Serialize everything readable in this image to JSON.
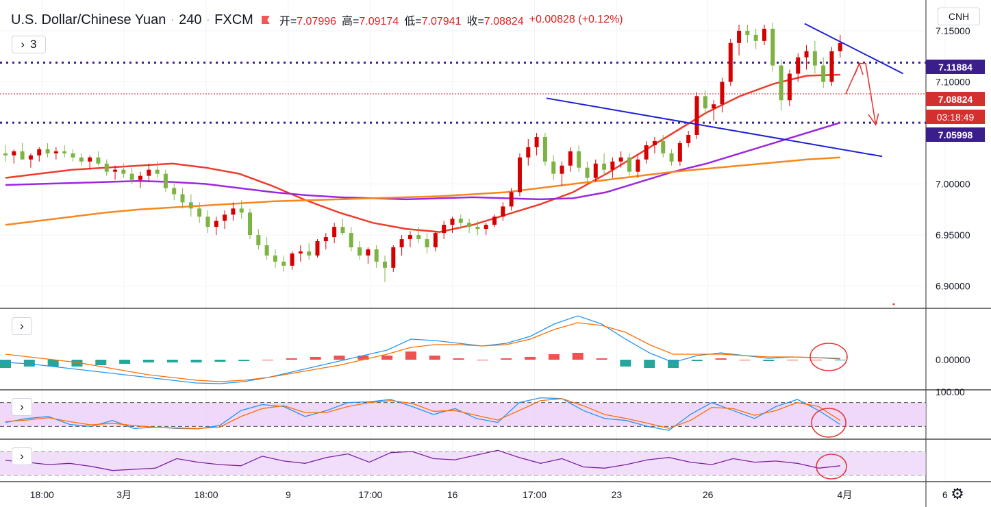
{
  "header": {
    "symbol": "U.S. Dollar/Chinese Yuan",
    "interval": "240",
    "exchange": "FXCM",
    "open_label": "开=",
    "open": "7.07996",
    "high_label": "高=",
    "high": "7.09174",
    "low_label": "低=",
    "low": "7.07941",
    "close_label": "收=",
    "close": "7.08824",
    "change": "+0.00828 (+0.12%)",
    "collapse_count": "3"
  },
  "currency_button": "CNH",
  "price_tags": {
    "resistance": "7.11884",
    "last": "7.08824",
    "countdown": "03:18:49",
    "support": "7.05998"
  },
  "colors": {
    "up": "#d50000",
    "down": "#7cb342",
    "ma_red": "#ef3b2c",
    "ma_purple": "#9c27e0",
    "ma_orange": "#f7861d",
    "trendline": "#1e1ed8",
    "level_line": "#3a1e8c",
    "last_price_line": "#c62828",
    "macd_line": "#2196f3",
    "signal_line": "#ff6d00",
    "hist_pos": "#ef5350",
    "hist_neg": "#26a69a",
    "rsi_band": "#e8c8f8",
    "rsi_line": "#7b1fa2",
    "annotation": "#e53935"
  },
  "chart_data": [
    {
      "type": "candlestick",
      "title": "U.S. Dollar/Chinese Yuan · 240 · FXCM",
      "y_ticks": [
        "7.15000",
        "7.10000",
        "7.00000",
        "6.95000",
        "6.90000"
      ],
      "ylim": [
        6.885,
        7.16
      ],
      "x_ticks": [
        "18:00",
        "3月",
        "18:00",
        "9",
        "17:00",
        "16",
        "17:00",
        "23",
        "26",
        "4月",
        "6"
      ],
      "xlim": [
        0,
        100
      ],
      "x_tick_positions": [
        4,
        13,
        22,
        31,
        40,
        49,
        58,
        67,
        77,
        92,
        103
      ],
      "candles": [
        [
          7.03,
          7.038,
          7.022,
          7.028
        ],
        [
          7.028,
          7.034,
          7.02,
          7.032
        ],
        [
          7.032,
          7.04,
          7.026,
          7.024
        ],
        [
          7.024,
          7.03,
          7.016,
          7.028
        ],
        [
          7.028,
          7.036,
          7.022,
          7.034
        ],
        [
          7.034,
          7.04,
          7.026,
          7.03
        ],
        [
          7.03,
          7.036,
          7.024,
          7.032
        ],
        [
          7.032,
          7.038,
          7.026,
          7.03
        ],
        [
          7.03,
          7.034,
          7.022,
          7.026
        ],
        [
          7.026,
          7.03,
          7.018,
          7.022
        ],
        [
          7.022,
          7.028,
          7.014,
          7.026
        ],
        [
          7.026,
          7.032,
          7.018,
          7.02
        ],
        [
          7.02,
          7.024,
          7.008,
          7.012
        ],
        [
          7.012,
          7.018,
          7.004,
          7.014
        ],
        [
          7.014,
          7.02,
          7.006,
          7.01
        ],
        [
          7.01,
          7.016,
          7.0,
          7.004
        ],
        [
          7.004,
          7.012,
          6.996,
          7.008
        ],
        [
          7.008,
          7.02,
          7.002,
          7.014
        ],
        [
          7.014,
          7.022,
          7.006,
          7.01
        ],
        [
          7.01,
          7.014,
          6.992,
          6.996
        ],
        [
          6.996,
          7.002,
          6.984,
          6.99
        ],
        [
          6.99,
          6.996,
          6.976,
          6.982
        ],
        [
          6.982,
          6.99,
          6.968,
          6.976
        ],
        [
          6.976,
          6.982,
          6.962,
          6.968
        ],
        [
          6.968,
          6.974,
          6.952,
          6.958
        ],
        [
          6.958,
          6.968,
          6.95,
          6.964
        ],
        [
          6.964,
          6.974,
          6.956,
          6.97
        ],
        [
          6.97,
          6.982,
          6.964,
          6.976
        ],
        [
          6.976,
          6.984,
          6.966,
          6.972
        ],
        [
          6.972,
          6.976,
          6.946,
          6.95
        ],
        [
          6.95,
          6.956,
          6.936,
          6.94
        ],
        [
          6.94,
          6.948,
          6.926,
          6.93
        ],
        [
          6.93,
          6.936,
          6.918,
          6.924
        ],
        [
          6.924,
          6.93,
          6.914,
          6.92
        ],
        [
          6.92,
          6.934,
          6.916,
          6.932
        ],
        [
          6.932,
          6.94,
          6.924,
          6.934
        ],
        [
          6.934,
          6.942,
          6.926,
          6.93
        ],
        [
          6.93,
          6.946,
          6.928,
          6.944
        ],
        [
          6.944,
          6.952,
          6.936,
          6.948
        ],
        [
          6.948,
          6.962,
          6.942,
          6.958
        ],
        [
          6.958,
          6.966,
          6.95,
          6.952
        ],
        [
          6.952,
          6.958,
          6.934,
          6.938
        ],
        [
          6.938,
          6.944,
          6.926,
          6.93
        ],
        [
          6.93,
          6.938,
          6.922,
          6.936
        ],
        [
          6.936,
          6.94,
          6.918,
          6.924
        ],
        [
          6.924,
          6.93,
          6.904,
          6.918
        ],
        [
          6.918,
          6.94,
          6.914,
          6.938
        ],
        [
          6.938,
          6.95,
          6.93,
          6.946
        ],
        [
          6.946,
          6.954,
          6.938,
          6.95
        ],
        [
          6.95,
          6.958,
          6.942,
          6.946
        ],
        [
          6.946,
          6.952,
          6.932,
          6.938
        ],
        [
          6.938,
          6.954,
          6.934,
          6.952
        ],
        [
          6.952,
          6.964,
          6.946,
          6.96
        ],
        [
          6.96,
          6.968,
          6.952,
          6.966
        ],
        [
          6.966,
          6.97,
          6.956,
          6.962
        ],
        [
          6.962,
          6.966,
          6.952,
          6.958
        ],
        [
          6.958,
          6.964,
          6.95,
          6.956
        ],
        [
          6.956,
          6.962,
          6.95,
          6.96
        ],
        [
          6.96,
          6.97,
          6.958,
          6.968
        ],
        [
          6.968,
          6.982,
          6.964,
          6.978
        ],
        [
          6.978,
          6.996,
          6.974,
          6.992
        ],
        [
          6.992,
          7.03,
          6.988,
          7.026
        ],
        [
          7.026,
          7.044,
          7.018,
          7.036
        ],
        [
          7.036,
          7.05,
          7.028,
          7.046
        ],
        [
          7.046,
          7.05,
          7.018,
          7.022
        ],
        [
          7.022,
          7.028,
          7.004,
          7.01
        ],
        [
          7.01,
          7.022,
          6.998,
          7.018
        ],
        [
          7.018,
          7.036,
          7.012,
          7.032
        ],
        [
          7.032,
          7.038,
          7.012,
          7.016
        ],
        [
          7.016,
          7.022,
          7.0,
          7.006
        ],
        [
          7.006,
          7.024,
          7.002,
          7.02
        ],
        [
          7.02,
          7.03,
          7.008,
          7.014
        ],
        [
          7.014,
          7.026,
          7.006,
          7.022
        ],
        [
          7.022,
          7.032,
          7.016,
          7.026
        ],
        [
          7.026,
          7.03,
          7.008,
          7.012
        ],
        [
          7.012,
          7.028,
          7.006,
          7.024
        ],
        [
          7.024,
          7.042,
          7.02,
          7.038
        ],
        [
          7.038,
          7.046,
          7.03,
          7.042
        ],
        [
          7.042,
          7.048,
          7.026,
          7.03
        ],
        [
          7.03,
          7.034,
          7.018,
          7.022
        ],
        [
          7.022,
          7.042,
          7.018,
          7.04
        ],
        [
          7.04,
          7.052,
          7.036,
          7.048
        ],
        [
          7.048,
          7.09,
          7.044,
          7.086
        ],
        [
          7.086,
          7.092,
          7.068,
          7.074
        ],
        [
          7.074,
          7.082,
          7.062,
          7.078
        ],
        [
          7.078,
          7.104,
          7.07,
          7.1
        ],
        [
          7.1,
          7.142,
          7.096,
          7.138
        ],
        [
          7.138,
          7.156,
          7.126,
          7.15
        ],
        [
          7.15,
          7.156,
          7.138,
          7.146
        ],
        [
          7.146,
          7.152,
          7.132,
          7.14
        ],
        [
          7.14,
          7.156,
          7.136,
          7.152
        ],
        [
          7.152,
          7.158,
          7.11,
          7.116
        ],
        [
          7.116,
          7.122,
          7.072,
          7.082
        ],
        [
          7.082,
          7.112,
          7.076,
          7.108
        ],
        [
          7.108,
          7.128,
          7.1,
          7.124
        ],
        [
          7.124,
          7.136,
          7.112,
          7.13
        ],
        [
          7.13,
          7.14,
          7.108,
          7.116
        ],
        [
          7.116,
          7.124,
          7.094,
          7.1
        ],
        [
          7.1,
          7.134,
          7.096,
          7.13
        ],
        [
          7.13,
          7.146,
          7.124,
          7.138
        ]
      ],
      "moving_averages": [
        {
          "color": "#ef3b2c",
          "values": [
            7.006,
            7.01,
            7.014,
            7.016,
            7.018,
            7.02,
            7.016,
            7.01,
            6.998,
            6.984,
            6.972,
            6.962,
            6.956,
            6.953,
            6.96,
            6.97,
            6.98,
            6.992,
            7.01,
            7.03,
            7.05,
            7.07,
            7.086,
            7.098,
            7.106,
            7.107
          ]
        },
        {
          "color": "#9c27e0",
          "values": [
            6.999,
            7.0,
            7.001,
            7.002,
            7.003,
            7.002,
            7.0,
            6.996,
            6.992,
            6.989,
            6.987,
            6.986,
            6.985,
            6.986,
            6.987,
            6.986,
            6.985,
            6.986,
            6.992,
            7.002,
            7.012,
            7.02,
            7.03,
            7.04,
            7.05,
            7.06
          ]
        },
        {
          "color": "#f7861d",
          "values": [
            6.96,
            6.964,
            6.968,
            6.972,
            6.975,
            6.977,
            6.979,
            6.981,
            6.983,
            6.984,
            6.985,
            6.986,
            6.987,
            6.988,
            6.99,
            6.992,
            6.996,
            7.0,
            7.004,
            7.008,
            7.012,
            7.015,
            7.018,
            7.021,
            7.024,
            7.026
          ]
        }
      ],
      "horizontal_levels": [
        "7.11884",
        "7.08824",
        "7.05998"
      ]
    },
    {
      "type": "line",
      "indicator": "MACD",
      "y_ticks": [
        "0.00000"
      ],
      "macd": [
        -0.004,
        -0.006,
        -0.01,
        -0.014,
        -0.018,
        -0.022,
        -0.026,
        -0.03,
        -0.034,
        -0.035,
        -0.032,
        -0.026,
        -0.018,
        -0.01,
        -0.002,
        0.006,
        0.014,
        0.03,
        0.028,
        0.024,
        0.02,
        0.024,
        0.034,
        0.052,
        0.064,
        0.052,
        0.03,
        0.01,
        -0.004,
        0.006,
        0.01,
        0.006,
        0.002,
        0.004,
        0.003,
        0.001
      ],
      "signal": [
        0.008,
        0.004,
        0.0,
        -0.004,
        -0.01,
        -0.016,
        -0.022,
        -0.026,
        -0.03,
        -0.032,
        -0.03,
        -0.026,
        -0.02,
        -0.014,
        -0.008,
        0.0,
        0.008,
        0.018,
        0.022,
        0.022,
        0.02,
        0.022,
        0.03,
        0.044,
        0.054,
        0.05,
        0.04,
        0.022,
        0.008,
        0.008,
        0.008,
        0.006,
        0.004,
        0.004,
        0.003,
        0.002
      ],
      "histogram": [
        -0.012,
        -0.01,
        -0.01,
        -0.01,
        -0.008,
        -0.006,
        -0.004,
        -0.004,
        -0.004,
        -0.003,
        -0.002,
        0.0,
        0.002,
        0.004,
        0.006,
        0.006,
        0.006,
        0.012,
        0.006,
        0.002,
        0.0,
        0.002,
        0.004,
        0.008,
        0.01,
        0.002,
        -0.01,
        -0.012,
        -0.012,
        -0.002,
        0.002,
        0.0,
        -0.002,
        0.0,
        0.0,
        -0.001
      ]
    },
    {
      "type": "line",
      "indicator": "Stochastic",
      "y_ticks": [
        "100.00"
      ],
      "k": [
        30,
        40,
        45,
        25,
        20,
        35,
        15,
        18,
        15,
        14,
        22,
        60,
        75,
        70,
        45,
        60,
        80,
        82,
        88,
        70,
        50,
        65,
        40,
        30,
        80,
        92,
        90,
        60,
        40,
        35,
        20,
        10,
        50,
        80,
        60,
        40,
        70,
        88,
        60,
        25
      ],
      "d": [
        32,
        36,
        42,
        32,
        24,
        28,
        22,
        18,
        16,
        15,
        18,
        45,
        65,
        72,
        55,
        55,
        70,
        80,
        85,
        78,
        58,
        60,
        48,
        36,
        60,
        85,
        90,
        72,
        50,
        40,
        28,
        15,
        35,
        68,
        65,
        48,
        60,
        80,
        70,
        35
      ]
    },
    {
      "type": "line",
      "indicator": "RSI",
      "values": [
        55,
        52,
        48,
        50,
        45,
        38,
        40,
        42,
        58,
        52,
        48,
        46,
        62,
        54,
        50,
        60,
        66,
        52,
        68,
        70,
        58,
        56,
        64,
        72,
        60,
        50,
        58,
        44,
        42,
        48,
        56,
        60,
        52,
        48,
        58,
        52,
        54,
        50,
        42,
        46
      ]
    }
  ]
}
